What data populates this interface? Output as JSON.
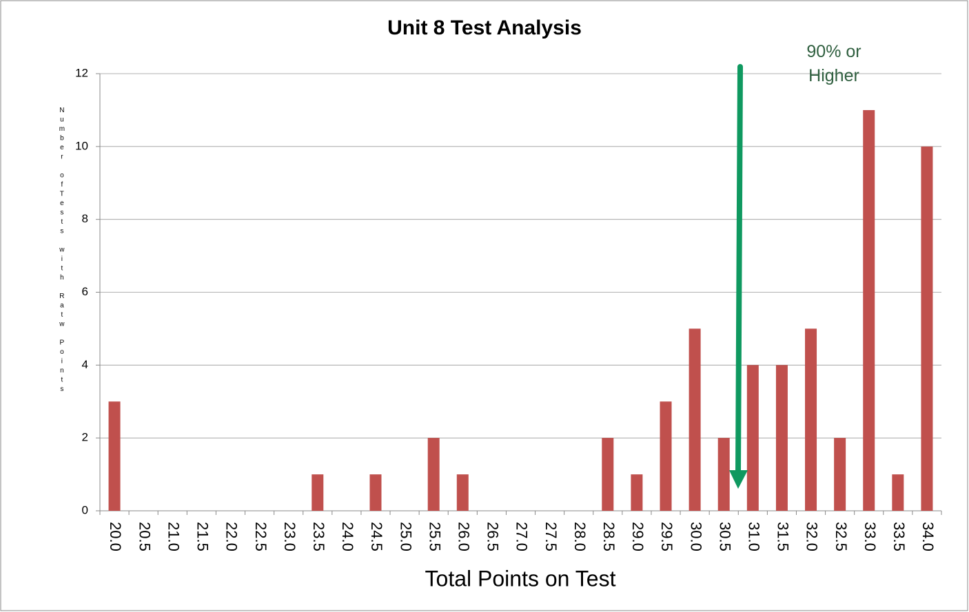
{
  "chart_data": {
    "type": "bar",
    "title": "Unit 8 Test Analysis",
    "x_label": "Total Points on Test",
    "y_label": "Number ofTests with Ratw Points",
    "annotation": "90% or Higher",
    "categories": [
      "20.0",
      "20.5",
      "21.0",
      "21.5",
      "22.0",
      "22.5",
      "23.0",
      "23.5",
      "24.0",
      "24.5",
      "25.0",
      "25.5",
      "26.0",
      "26.5",
      "27.0",
      "27.5",
      "28.0",
      "28.5",
      "29.0",
      "29.5",
      "30.0",
      "30.5",
      "31.0",
      "31.5",
      "32.0",
      "32.5",
      "33.0",
      "33.5",
      "34.0"
    ],
    "values": [
      3,
      0,
      0,
      0,
      0,
      0,
      0,
      1,
      0,
      1,
      0,
      2,
      1,
      0,
      0,
      0,
      0,
      2,
      1,
      3,
      5,
      2,
      4,
      4,
      5,
      2,
      11,
      1,
      10
    ],
    "color": "#c0504d",
    "ylim": [
      0,
      12
    ],
    "yticks": [
      0,
      2,
      4,
      6,
      8,
      10,
      12
    ],
    "grid": true
  }
}
